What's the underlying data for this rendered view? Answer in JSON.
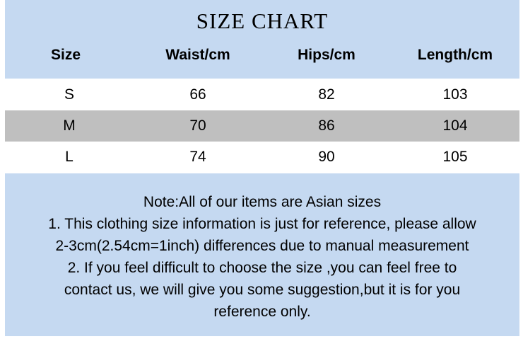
{
  "title": "SIZE CHART",
  "headers": [
    "Size",
    "Waist/cm",
    "Hips/cm",
    "Length/cm"
  ],
  "rows": [
    [
      "S",
      "66",
      "82",
      "103"
    ],
    [
      "M",
      "70",
      "86",
      "104"
    ],
    [
      "L",
      "74",
      "90",
      "105"
    ]
  ],
  "note_lines": [
    "Note:All of our items are Asian sizes",
    "1. This clothing size information is just for reference, please allow",
    "2-3cm(2.54cm=1inch) differences due to manual measurement",
    "2. If you feel difficult to choose the size ,you can feel free to",
    "contact us, we will give you some suggestion,but it is for you",
    "reference only."
  ],
  "colors": {
    "header_bg": "#c5d9f1",
    "alt_row_bg": "#bfbfbf"
  }
}
